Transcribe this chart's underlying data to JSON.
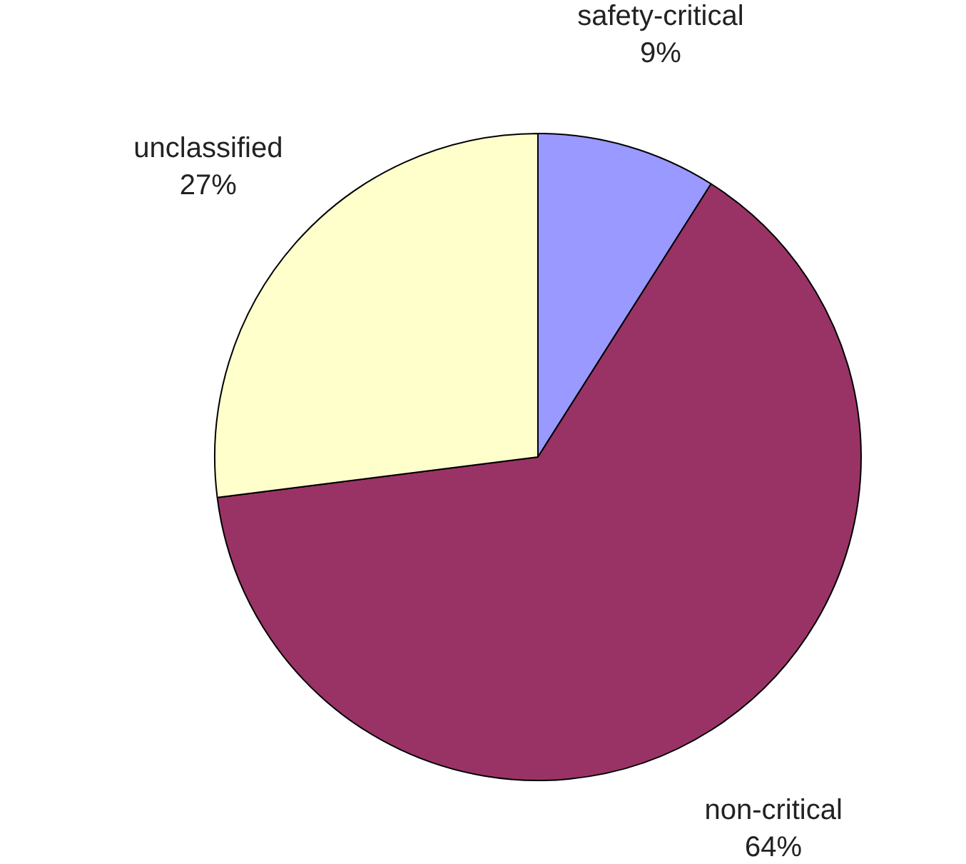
{
  "chart_data": {
    "type": "pie",
    "categories": [
      "safety-critical",
      "non-critical",
      "unclassified"
    ],
    "values": [
      9,
      64,
      27
    ],
    "value_labels": [
      "9%",
      "64%",
      "27%"
    ],
    "colors": [
      "#9999ff",
      "#993366",
      "#ffffcc"
    ],
    "legend": false
  }
}
